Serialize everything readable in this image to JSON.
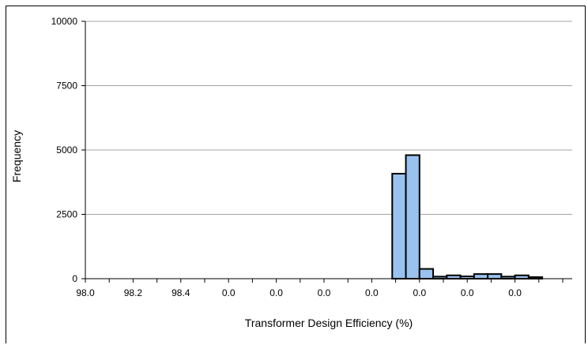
{
  "chart_data": {
    "type": "bar",
    "title": "",
    "xlabel": "Transformer Design Efficiency (%)",
    "ylabel": "Frequency",
    "ylim": [
      0,
      10000
    ],
    "yticks": [
      0,
      2500,
      5000,
      7500,
      10000
    ],
    "ytick_labels": [
      "0",
      "2500",
      "5000",
      "7500",
      "10000"
    ],
    "xtick_labels": [
      "98.0",
      "98.2",
      "98.4",
      "0.0",
      "0.0",
      "0.0",
      "0.0",
      "0.0",
      "0.0",
      "0.0"
    ],
    "grid": "horizontal",
    "colors": {
      "bar_fill": "#99c2ee",
      "bar_stroke": "#000000",
      "grid": "#a6a6a6"
    },
    "bins": [
      {
        "x": 98.9,
        "value": 4080
      },
      {
        "x": 98.94,
        "value": 4800
      },
      {
        "x": 98.98,
        "value": 380
      },
      {
        "x": 99.02,
        "value": 80
      },
      {
        "x": 99.06,
        "value": 130
      },
      {
        "x": 99.1,
        "value": 90
      },
      {
        "x": 99.14,
        "value": 180
      },
      {
        "x": 99.18,
        "value": 180
      },
      {
        "x": 99.22,
        "value": 80
      },
      {
        "x": 99.26,
        "value": 130
      },
      {
        "x": 99.3,
        "value": 60
      }
    ],
    "bin_width": 0.04,
    "x_range": [
      98.0,
      99.4
    ]
  }
}
